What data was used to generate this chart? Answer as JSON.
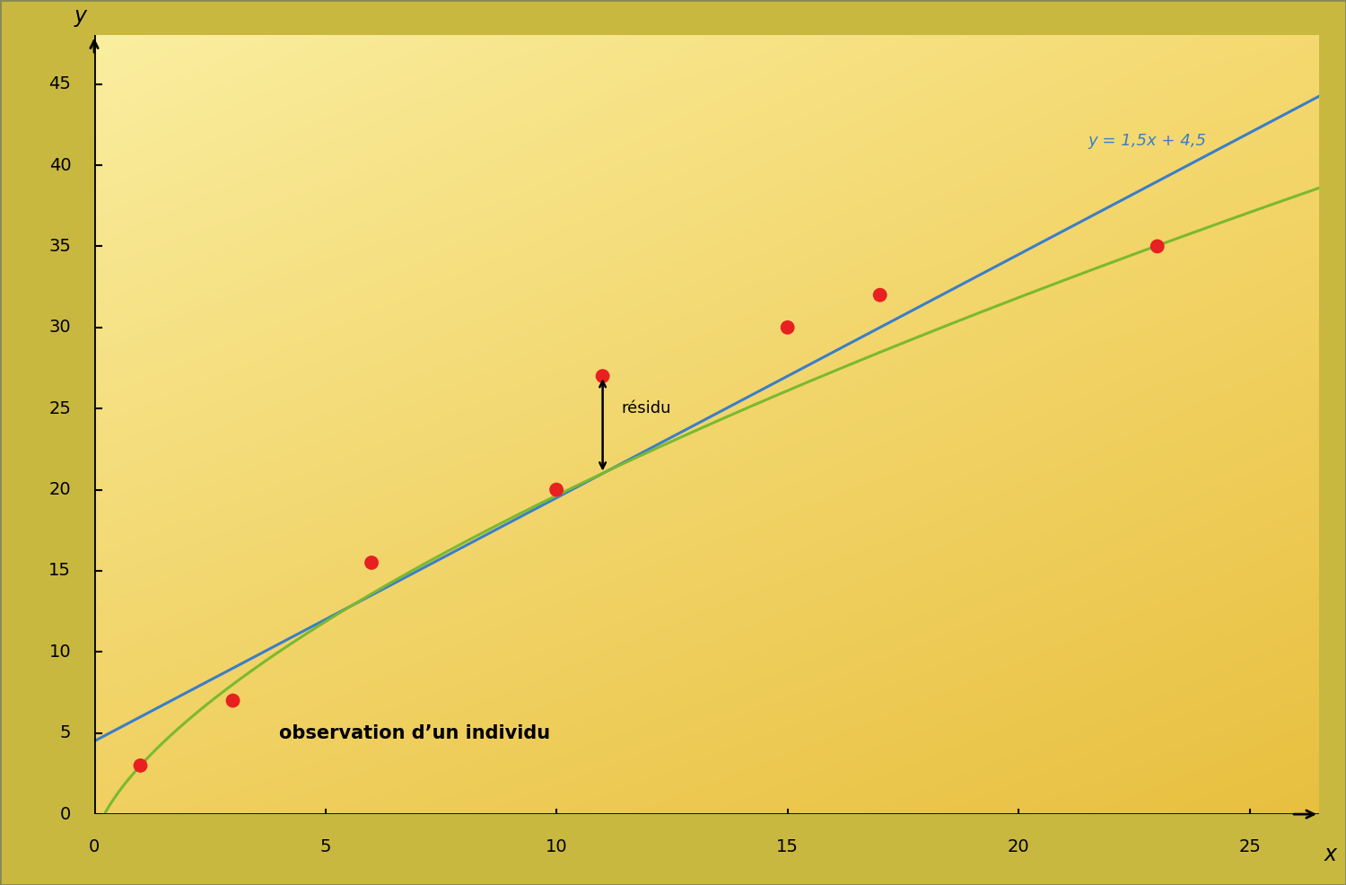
{
  "points_x": [
    1,
    3,
    6,
    10,
    11,
    15,
    17,
    23
  ],
  "points_y": [
    3,
    7,
    15.5,
    20,
    27,
    30,
    32,
    35
  ],
  "linear_slope": 1.5,
  "linear_intercept": 4.5,
  "linear_label": "y = 1,5x + 4,5",
  "linear_color": "#3a7ec8",
  "curve_color": "#7ab930",
  "point_color": "#e82020",
  "point_size": 130,
  "xlim": [
    0,
    26.5
  ],
  "ylim": [
    0,
    48
  ],
  "xticks": [
    0,
    5,
    10,
    15,
    20,
    25
  ],
  "yticks": [
    0,
    5,
    10,
    15,
    20,
    25,
    30,
    35,
    40,
    45
  ],
  "xlabel": "x",
  "ylabel": "y",
  "residue_label": "résidu",
  "residue_x": 11,
  "residue_y_point": 27,
  "obs_label": "observation d’un individu",
  "bg_color_topleft": "#faeea0",
  "bg_color_topright": "#f5d970",
  "bg_color_bottomleft": "#f0d060",
  "bg_color_bottomright": "#e8c040",
  "axis_label_fontsize": 17,
  "tick_fontsize": 14,
  "obs_fontsize": 15,
  "linear_label_fontsize": 13,
  "residue_fontsize": 13,
  "border_color": "#555533",
  "curve_log_a": 9.8,
  "curve_log_b": 0.35
}
